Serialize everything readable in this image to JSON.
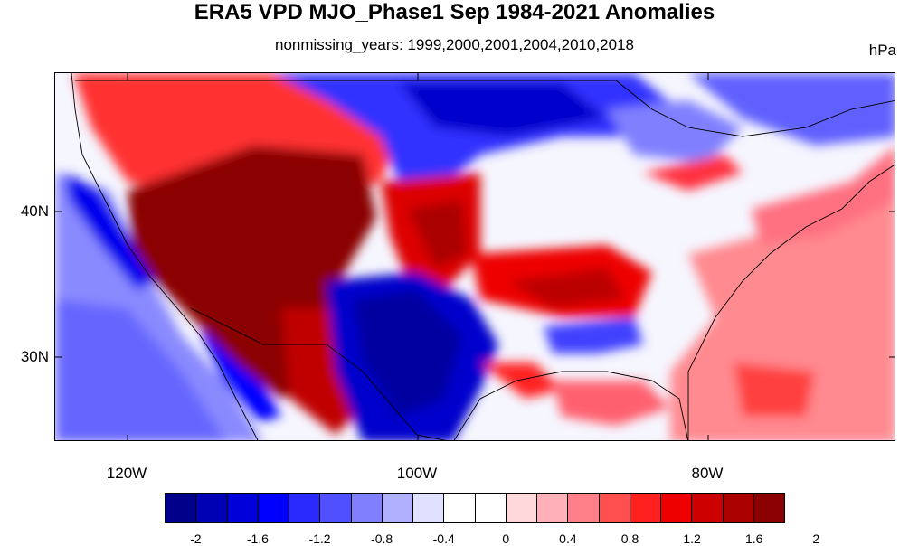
{
  "title": "ERA5 VPD MJO_Phase1 Sep 1984-2021 Anomalies",
  "subtitle": "nonmissing_years: 1999,2000,2001,2004,2010,2018",
  "units": "hPa",
  "map": {
    "lat_labels": [
      "40N",
      "30N"
    ],
    "lon_labels": [
      "120W",
      "100W",
      "80W"
    ]
  },
  "colorbar": {
    "colors": [
      "#00008b",
      "#0000b4",
      "#0000d8",
      "#0000ff",
      "#2a2aff",
      "#5050ff",
      "#8080ff",
      "#b0b0ff",
      "#e0e0ff",
      "#ffffff",
      "#ffffff",
      "#ffd8dc",
      "#ffb0b8",
      "#ff8088",
      "#ff5050",
      "#ff2020",
      "#ee0000",
      "#cc0000",
      "#aa0000",
      "#8b0000"
    ],
    "labels": [
      "-2",
      "-1.6",
      "-1.2",
      "-0.8",
      "-0.4",
      "0",
      "0.4",
      "0.8",
      "1.2",
      "1.6",
      "2"
    ]
  }
}
